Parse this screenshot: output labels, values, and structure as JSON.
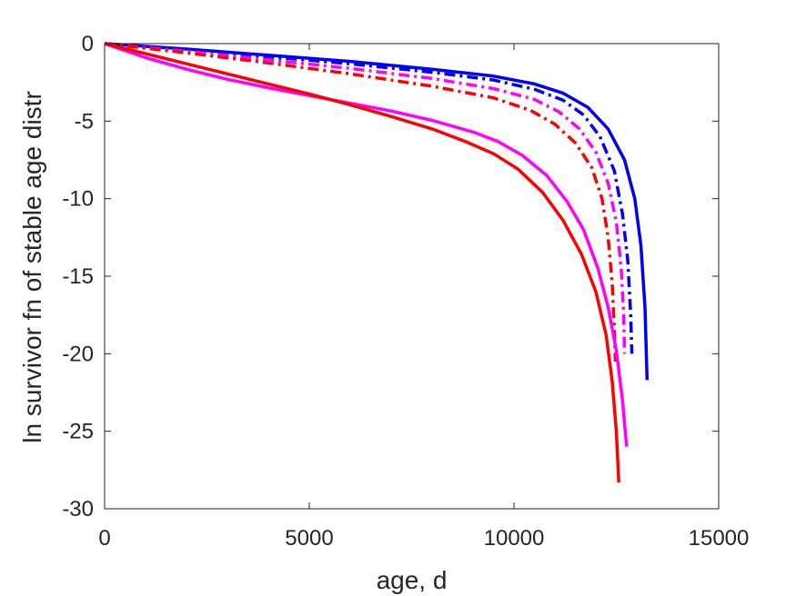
{
  "chart_data": {
    "type": "line",
    "title": "",
    "xlabel": "age, d",
    "ylabel": "ln survivor fn of stable age distr",
    "xlim": [
      0,
      15000
    ],
    "ylim": [
      -30,
      0
    ],
    "xticks": [
      0,
      5000,
      10000,
      15000
    ],
    "xtick_labels": [
      "0",
      "5000",
      "10000",
      "15000"
    ],
    "yticks": [
      0,
      -5,
      -10,
      -15,
      -20,
      -25,
      -30
    ],
    "ytick_labels": [
      "0",
      "-5",
      "-10",
      "-15",
      "-20",
      "-25",
      "-30"
    ],
    "grid": false,
    "legend": "none",
    "series": [
      {
        "color": "#0000ff",
        "style": "solid",
        "x": [
          0,
          2000,
          4000,
          6000,
          8000,
          9500,
          10500,
          11200,
          11800,
          12300,
          12700,
          12950,
          13100,
          13200,
          13250
        ],
        "y": [
          0,
          -0.35,
          -0.75,
          -1.15,
          -1.65,
          -2.1,
          -2.6,
          -3.2,
          -4.1,
          -5.5,
          -7.5,
          -10.0,
          -13.0,
          -17.0,
          -21.7
        ]
      },
      {
        "color": "#0000ff",
        "style": "dashdot",
        "x": [
          0,
          2000,
          4000,
          6000,
          8000,
          9500,
          10500,
          11200,
          11700,
          12100,
          12450,
          12650,
          12780,
          12850,
          12880
        ],
        "y": [
          0,
          -0.4,
          -0.85,
          -1.3,
          -1.85,
          -2.35,
          -2.95,
          -3.65,
          -4.6,
          -6.0,
          -8.2,
          -11.0,
          -14.0,
          -17.5,
          -20.0
        ]
      },
      {
        "color": "#ff00ff",
        "style": "dashdot",
        "x": [
          0,
          2000,
          4000,
          6000,
          8000,
          9500,
          10500,
          11100,
          11600,
          12000,
          12300,
          12500,
          12620,
          12680,
          12700
        ],
        "y": [
          0,
          -0.5,
          -1.05,
          -1.6,
          -2.25,
          -2.9,
          -3.6,
          -4.4,
          -5.5,
          -7.0,
          -9.0,
          -11.5,
          -14.5,
          -17.5,
          -20.0
        ]
      },
      {
        "color": "#ff0000",
        "style": "dashdot",
        "x": [
          0,
          2000,
          4000,
          6000,
          8000,
          9500,
          10400,
          11000,
          11500,
          11900,
          12150,
          12300,
          12400,
          12450,
          12480
        ],
        "y": [
          0,
          -0.6,
          -1.25,
          -1.95,
          -2.75,
          -3.5,
          -4.3,
          -5.2,
          -6.4,
          -8.0,
          -10.0,
          -12.5,
          -15.5,
          -18.5,
          -20.5
        ]
      },
      {
        "color": "#ff00ff",
        "style": "solid",
        "x": [
          0,
          1000,
          2000,
          3000,
          4000,
          5000,
          6000,
          7000,
          8000,
          9000,
          9600,
          10200,
          10800,
          11300,
          11700,
          12050,
          12300,
          12500,
          12650,
          12750
        ],
        "y": [
          0,
          -0.9,
          -1.65,
          -2.3,
          -2.85,
          -3.35,
          -3.85,
          -4.35,
          -4.95,
          -5.7,
          -6.3,
          -7.2,
          -8.5,
          -10.2,
          -12.0,
          -14.5,
          -17.0,
          -19.8,
          -23.0,
          -26.0
        ]
      },
      {
        "color": "#ff0000",
        "style": "solid",
        "x": [
          0,
          1000,
          2000,
          3000,
          4000,
          5000,
          6000,
          7000,
          8000,
          8800,
          9500,
          10100,
          10700,
          11200,
          11650,
          12000,
          12250,
          12400,
          12500,
          12560
        ],
        "y": [
          0,
          -0.65,
          -1.3,
          -1.95,
          -2.6,
          -3.25,
          -3.95,
          -4.7,
          -5.5,
          -6.3,
          -7.1,
          -8.1,
          -9.6,
          -11.4,
          -13.6,
          -16.0,
          -18.8,
          -21.8,
          -25.0,
          -28.3
        ]
      }
    ]
  }
}
